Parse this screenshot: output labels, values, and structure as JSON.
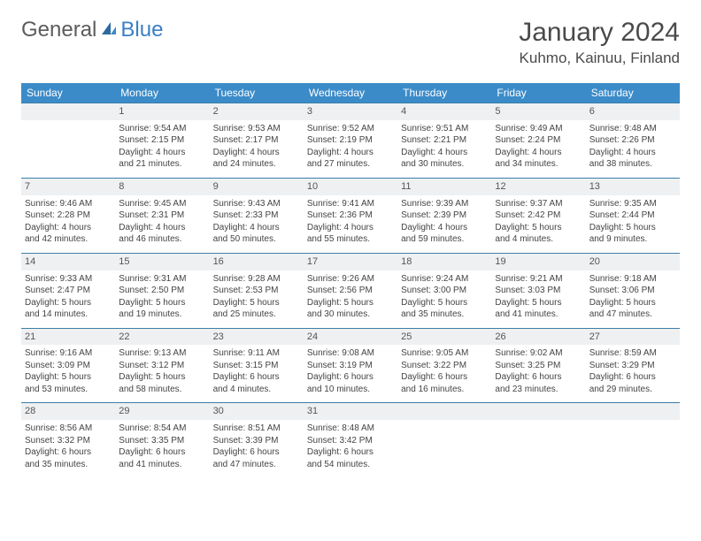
{
  "logo": {
    "text1": "General",
    "text2": "Blue"
  },
  "title": "January 2024",
  "location": "Kuhmo, Kainuu, Finland",
  "weekdays": [
    "Sunday",
    "Monday",
    "Tuesday",
    "Wednesday",
    "Thursday",
    "Friday",
    "Saturday"
  ],
  "colors": {
    "header_bg": "#3b8bc9",
    "header_text": "#ffffff",
    "border": "#3b7fa8",
    "daynum_bg": "#eef0f2",
    "logo_gray": "#5c5c5c",
    "logo_blue": "#3b7fc4"
  },
  "weeks": [
    [
      null,
      {
        "n": "1",
        "sr": "Sunrise: 9:54 AM",
        "ss": "Sunset: 2:15 PM",
        "d1": "Daylight: 4 hours",
        "d2": "and 21 minutes."
      },
      {
        "n": "2",
        "sr": "Sunrise: 9:53 AM",
        "ss": "Sunset: 2:17 PM",
        "d1": "Daylight: 4 hours",
        "d2": "and 24 minutes."
      },
      {
        "n": "3",
        "sr": "Sunrise: 9:52 AM",
        "ss": "Sunset: 2:19 PM",
        "d1": "Daylight: 4 hours",
        "d2": "and 27 minutes."
      },
      {
        "n": "4",
        "sr": "Sunrise: 9:51 AM",
        "ss": "Sunset: 2:21 PM",
        "d1": "Daylight: 4 hours",
        "d2": "and 30 minutes."
      },
      {
        "n": "5",
        "sr": "Sunrise: 9:49 AM",
        "ss": "Sunset: 2:24 PM",
        "d1": "Daylight: 4 hours",
        "d2": "and 34 minutes."
      },
      {
        "n": "6",
        "sr": "Sunrise: 9:48 AM",
        "ss": "Sunset: 2:26 PM",
        "d1": "Daylight: 4 hours",
        "d2": "and 38 minutes."
      }
    ],
    [
      {
        "n": "7",
        "sr": "Sunrise: 9:46 AM",
        "ss": "Sunset: 2:28 PM",
        "d1": "Daylight: 4 hours",
        "d2": "and 42 minutes."
      },
      {
        "n": "8",
        "sr": "Sunrise: 9:45 AM",
        "ss": "Sunset: 2:31 PM",
        "d1": "Daylight: 4 hours",
        "d2": "and 46 minutes."
      },
      {
        "n": "9",
        "sr": "Sunrise: 9:43 AM",
        "ss": "Sunset: 2:33 PM",
        "d1": "Daylight: 4 hours",
        "d2": "and 50 minutes."
      },
      {
        "n": "10",
        "sr": "Sunrise: 9:41 AM",
        "ss": "Sunset: 2:36 PM",
        "d1": "Daylight: 4 hours",
        "d2": "and 55 minutes."
      },
      {
        "n": "11",
        "sr": "Sunrise: 9:39 AM",
        "ss": "Sunset: 2:39 PM",
        "d1": "Daylight: 4 hours",
        "d2": "and 59 minutes."
      },
      {
        "n": "12",
        "sr": "Sunrise: 9:37 AM",
        "ss": "Sunset: 2:42 PM",
        "d1": "Daylight: 5 hours",
        "d2": "and 4 minutes."
      },
      {
        "n": "13",
        "sr": "Sunrise: 9:35 AM",
        "ss": "Sunset: 2:44 PM",
        "d1": "Daylight: 5 hours",
        "d2": "and 9 minutes."
      }
    ],
    [
      {
        "n": "14",
        "sr": "Sunrise: 9:33 AM",
        "ss": "Sunset: 2:47 PM",
        "d1": "Daylight: 5 hours",
        "d2": "and 14 minutes."
      },
      {
        "n": "15",
        "sr": "Sunrise: 9:31 AM",
        "ss": "Sunset: 2:50 PM",
        "d1": "Daylight: 5 hours",
        "d2": "and 19 minutes."
      },
      {
        "n": "16",
        "sr": "Sunrise: 9:28 AM",
        "ss": "Sunset: 2:53 PM",
        "d1": "Daylight: 5 hours",
        "d2": "and 25 minutes."
      },
      {
        "n": "17",
        "sr": "Sunrise: 9:26 AM",
        "ss": "Sunset: 2:56 PM",
        "d1": "Daylight: 5 hours",
        "d2": "and 30 minutes."
      },
      {
        "n": "18",
        "sr": "Sunrise: 9:24 AM",
        "ss": "Sunset: 3:00 PM",
        "d1": "Daylight: 5 hours",
        "d2": "and 35 minutes."
      },
      {
        "n": "19",
        "sr": "Sunrise: 9:21 AM",
        "ss": "Sunset: 3:03 PM",
        "d1": "Daylight: 5 hours",
        "d2": "and 41 minutes."
      },
      {
        "n": "20",
        "sr": "Sunrise: 9:18 AM",
        "ss": "Sunset: 3:06 PM",
        "d1": "Daylight: 5 hours",
        "d2": "and 47 minutes."
      }
    ],
    [
      {
        "n": "21",
        "sr": "Sunrise: 9:16 AM",
        "ss": "Sunset: 3:09 PM",
        "d1": "Daylight: 5 hours",
        "d2": "and 53 minutes."
      },
      {
        "n": "22",
        "sr": "Sunrise: 9:13 AM",
        "ss": "Sunset: 3:12 PM",
        "d1": "Daylight: 5 hours",
        "d2": "and 58 minutes."
      },
      {
        "n": "23",
        "sr": "Sunrise: 9:11 AM",
        "ss": "Sunset: 3:15 PM",
        "d1": "Daylight: 6 hours",
        "d2": "and 4 minutes."
      },
      {
        "n": "24",
        "sr": "Sunrise: 9:08 AM",
        "ss": "Sunset: 3:19 PM",
        "d1": "Daylight: 6 hours",
        "d2": "and 10 minutes."
      },
      {
        "n": "25",
        "sr": "Sunrise: 9:05 AM",
        "ss": "Sunset: 3:22 PM",
        "d1": "Daylight: 6 hours",
        "d2": "and 16 minutes."
      },
      {
        "n": "26",
        "sr": "Sunrise: 9:02 AM",
        "ss": "Sunset: 3:25 PM",
        "d1": "Daylight: 6 hours",
        "d2": "and 23 minutes."
      },
      {
        "n": "27",
        "sr": "Sunrise: 8:59 AM",
        "ss": "Sunset: 3:29 PM",
        "d1": "Daylight: 6 hours",
        "d2": "and 29 minutes."
      }
    ],
    [
      {
        "n": "28",
        "sr": "Sunrise: 8:56 AM",
        "ss": "Sunset: 3:32 PM",
        "d1": "Daylight: 6 hours",
        "d2": "and 35 minutes."
      },
      {
        "n": "29",
        "sr": "Sunrise: 8:54 AM",
        "ss": "Sunset: 3:35 PM",
        "d1": "Daylight: 6 hours",
        "d2": "and 41 minutes."
      },
      {
        "n": "30",
        "sr": "Sunrise: 8:51 AM",
        "ss": "Sunset: 3:39 PM",
        "d1": "Daylight: 6 hours",
        "d2": "and 47 minutes."
      },
      {
        "n": "31",
        "sr": "Sunrise: 8:48 AM",
        "ss": "Sunset: 3:42 PM",
        "d1": "Daylight: 6 hours",
        "d2": "and 54 minutes."
      },
      null,
      null,
      null
    ]
  ]
}
